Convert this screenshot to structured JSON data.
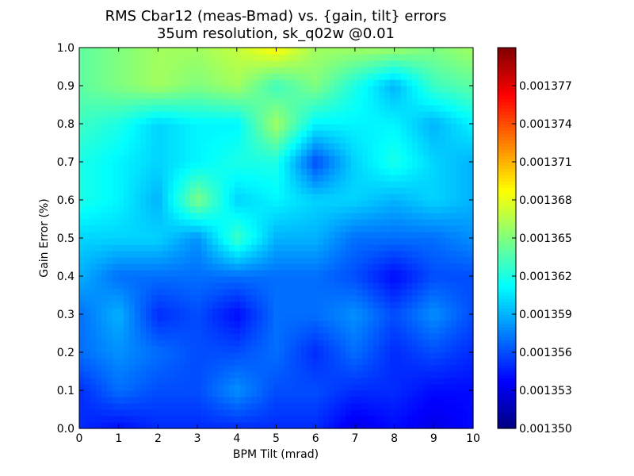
{
  "chart_data": {
    "type": "heatmap",
    "title": [
      "RMS Cbar12 (meas-Bmad) vs. {gain, tilt} errors",
      "35um resolution, sk_q02w @0.01"
    ],
    "xlabel": "BPM Tilt (mrad)",
    "ylabel": "Gain Error (%)",
    "xlim": [
      0,
      10
    ],
    "ylim": [
      0,
      1.0
    ],
    "x": [
      0,
      1,
      2,
      3,
      4,
      5,
      6,
      7,
      8,
      9,
      10
    ],
    "y": [
      0.0,
      0.1,
      0.2,
      0.3,
      0.4,
      0.5,
      0.6,
      0.7,
      0.8,
      0.9,
      1.0
    ],
    "xticks": [
      "0",
      "1",
      "2",
      "3",
      "4",
      "5",
      "6",
      "7",
      "8",
      "9",
      "10"
    ],
    "yticks": [
      "0.0",
      "0.1",
      "0.2",
      "0.3",
      "0.4",
      "0.5",
      "0.6",
      "0.7",
      "0.8",
      "0.9",
      "1.0"
    ],
    "z": [
      [
        0.001355,
        0.001354,
        0.001355,
        0.001355,
        0.001355,
        0.001355,
        0.001355,
        0.001353,
        0.001354,
        0.001353,
        0.001354
      ],
      [
        0.001355,
        0.001357,
        0.001356,
        0.001356,
        0.001358,
        0.001356,
        0.001356,
        0.001355,
        0.001355,
        0.001354,
        0.001354
      ],
      [
        0.001357,
        0.001358,
        0.001357,
        0.001356,
        0.001356,
        0.001357,
        0.001355,
        0.001357,
        0.001355,
        0.001356,
        0.001355
      ],
      [
        0.001357,
        0.001359,
        0.001355,
        0.001356,
        0.001354,
        0.001357,
        0.001357,
        0.001358,
        0.001356,
        0.001358,
        0.001356
      ],
      [
        0.001359,
        0.001357,
        0.001357,
        0.001357,
        0.001357,
        0.001357,
        0.001357,
        0.001356,
        0.001354,
        0.001356,
        0.001356
      ],
      [
        0.00136,
        0.00136,
        0.00136,
        0.001358,
        0.001363,
        0.001359,
        0.001359,
        0.001357,
        0.001357,
        0.001357,
        0.001358
      ],
      [
        0.001362,
        0.001361,
        0.001359,
        0.001365,
        0.00136,
        0.001361,
        0.00136,
        0.00136,
        0.001359,
        0.00136,
        0.001359
      ],
      [
        0.001362,
        0.001361,
        0.00136,
        0.001361,
        0.001362,
        0.001362,
        0.001356,
        0.00136,
        0.001362,
        0.00136,
        0.001359
      ],
      [
        0.001363,
        0.001362,
        0.00136,
        0.001361,
        0.001361,
        0.001366,
        0.001361,
        0.001361,
        0.001361,
        0.001359,
        0.001361
      ],
      [
        0.001364,
        0.001365,
        0.001366,
        0.001365,
        0.001366,
        0.001363,
        0.001365,
        0.001362,
        0.001359,
        0.001363,
        0.001364
      ],
      [
        0.001364,
        0.001365,
        0.001366,
        0.001366,
        0.001367,
        0.001369,
        0.001366,
        0.001366,
        0.001366,
        0.001365,
        0.001366
      ]
    ],
    "zlim": [
      0.00135,
      0.00138
    ],
    "colorbar": {
      "ticks": [
        "0.001350",
        "0.001353",
        "0.001356",
        "0.001359",
        "0.001362",
        "0.001365",
        "0.001368",
        "0.001371",
        "0.001374",
        "0.001377"
      ],
      "tick_values": [
        0.00135,
        0.001353,
        0.001356,
        0.001359,
        0.001362,
        0.001365,
        0.001368,
        0.001371,
        0.001374,
        0.001377
      ],
      "colormap": "jet"
    },
    "grid": false
  }
}
